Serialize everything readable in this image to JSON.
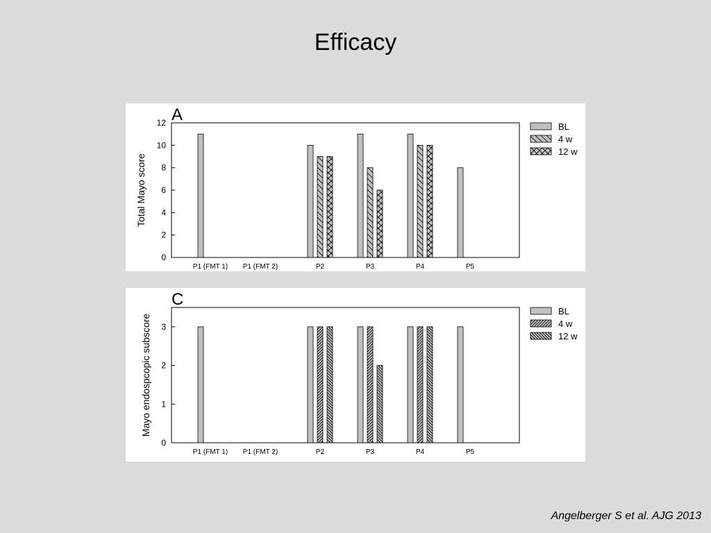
{
  "slide": {
    "title": "Efficacy",
    "citation": "Angelberger S et al. AJG 2013"
  },
  "chart_data": [
    {
      "type": "bar",
      "panel_label": "A",
      "ylabel": "Total Mayo score",
      "xlabel": "",
      "categories": [
        "P1 (FMT 1)",
        "P1 (FMT 2)",
        "P2",
        "P3",
        "P4",
        "P5"
      ],
      "ylim": [
        0,
        12
      ],
      "yticks": [
        0,
        2,
        4,
        6,
        8,
        10,
        12
      ],
      "legend_position": "top-right",
      "series": [
        {
          "name": "BL",
          "pattern": "solid",
          "color": "#c0c0c0",
          "values": [
            11,
            null,
            10,
            11,
            11,
            8
          ]
        },
        {
          "name": "4 w",
          "pattern": "backdiag",
          "color": "#c0c0c0",
          "values": [
            null,
            null,
            9,
            8,
            10,
            null
          ]
        },
        {
          "name": "12 w",
          "pattern": "cross",
          "color": "#c0c0c0",
          "values": [
            null,
            null,
            9,
            6,
            10,
            null
          ]
        }
      ]
    },
    {
      "type": "bar",
      "panel_label": "C",
      "ylabel": "Mayo endospcopic subscore",
      "xlabel": "",
      "categories": [
        "P1 (FMT 1)",
        "P1 (FMT 2)",
        "P2",
        "P3",
        "P4",
        "P5"
      ],
      "ylim": [
        0,
        3.5
      ],
      "yticks": [
        0,
        1,
        2,
        3
      ],
      "legend_position": "top-right",
      "series": [
        {
          "name": "BL",
          "pattern": "solid",
          "color": "#c0c0c0",
          "values": [
            3,
            null,
            3,
            3,
            3,
            3
          ]
        },
        {
          "name": "4 w",
          "pattern": "dense-diag",
          "color": "#c0c0c0",
          "values": [
            null,
            null,
            3,
            3,
            3,
            null
          ]
        },
        {
          "name": "12 w",
          "pattern": "dense-back",
          "color": "#c0c0c0",
          "values": [
            null,
            null,
            3,
            2,
            3,
            null
          ]
        }
      ]
    }
  ]
}
